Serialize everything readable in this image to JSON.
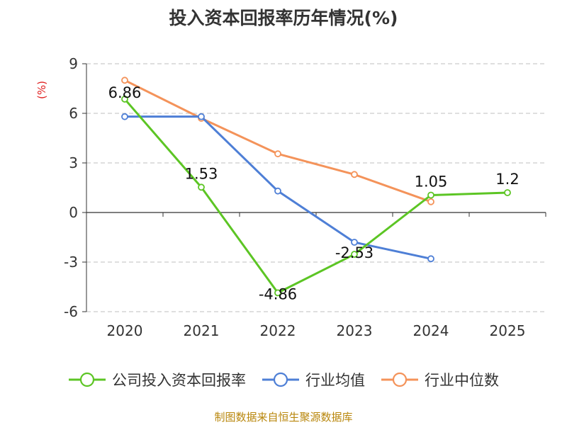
{
  "title": "投入资本回报率历年情况(%)",
  "source": "制图数据来自恒生聚源数据库",
  "chart_data": {
    "type": "line",
    "title": "投入资本回报率历年情况(%)",
    "ylabel": "(%)",
    "xlabel": "",
    "categories": [
      "2020",
      "2021",
      "2022",
      "2023",
      "2024",
      "2025"
    ],
    "ylim": [
      -6,
      9
    ],
    "yticks": [
      9,
      6,
      3,
      0,
      -3,
      -6
    ],
    "grid": true,
    "legend_position": "bottom",
    "series": [
      {
        "name": "公司投入资本回报率",
        "color": "#5cc524",
        "values": [
          6.86,
          1.53,
          -4.86,
          -2.53,
          1.05,
          1.2
        ],
        "labels": [
          "6.86",
          "1.53",
          "-4.86",
          "-2.53",
          "1.05",
          "1.2"
        ]
      },
      {
        "name": "行业均值",
        "color": "#4e7fd6",
        "values": [
          5.8,
          5.8,
          1.3,
          -1.8,
          -2.8,
          null
        ]
      },
      {
        "name": "行业中位数",
        "color": "#f4935a",
        "values": [
          8.0,
          5.7,
          3.55,
          2.3,
          0.65,
          null
        ]
      }
    ]
  }
}
